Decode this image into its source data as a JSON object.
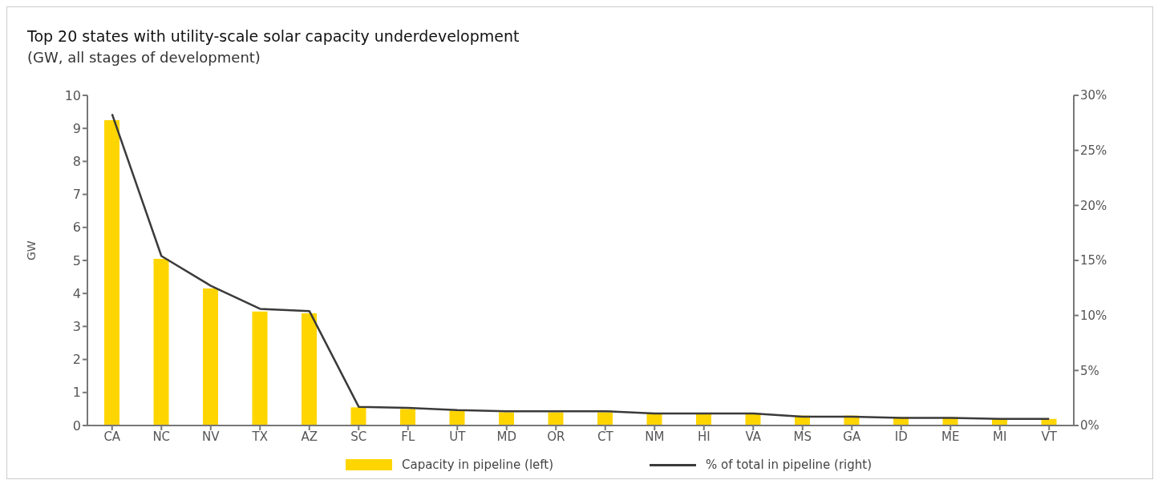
{
  "chart_data": {
    "type": "bar",
    "title": "Top 20 states with utility-scale solar capacity underdevelopment",
    "subtitle": "(GW, all stages of development)",
    "ylabel": "GW",
    "categories": [
      "CA",
      "NC",
      "NV",
      "TX",
      "AZ",
      "SC",
      "FL",
      "UT",
      "MD",
      "OR",
      "CT",
      "NM",
      "HI",
      "VA",
      "MS",
      "GA",
      "ID",
      "ME",
      "MI",
      "VT"
    ],
    "series": [
      {
        "name": "Capacity in pipeline (left)",
        "color": "#ffd500",
        "values": [
          9.25,
          5.05,
          4.15,
          3.45,
          3.4,
          0.55,
          0.5,
          0.45,
          0.4,
          0.4,
          0.4,
          0.35,
          0.35,
          0.35,
          0.3,
          0.3,
          0.25,
          0.25,
          0.2,
          0.2
        ]
      },
      {
        "name": "% of total in pipeline (right)",
        "type": "line",
        "axis": "y2",
        "color": "#3a3a3a",
        "values": [
          28.3,
          15.4,
          12.7,
          10.6,
          10.4,
          1.7,
          1.6,
          1.4,
          1.3,
          1.3,
          1.3,
          1.1,
          1.1,
          1.1,
          0.8,
          0.8,
          0.7,
          0.7,
          0.6,
          0.6
        ]
      }
    ],
    "ylim": [
      0,
      10
    ],
    "yticks": [
      0,
      1,
      2,
      3,
      4,
      5,
      6,
      7,
      8,
      9,
      10
    ],
    "y2lim": [
      0,
      30
    ],
    "y2ticks": [
      {
        "value": 0,
        "label": "0%"
      },
      {
        "value": 5,
        "label": "5%"
      },
      {
        "value": 10,
        "label": "10%"
      },
      {
        "value": 15,
        "label": "15%"
      },
      {
        "value": 20,
        "label": "20%"
      },
      {
        "value": 25,
        "label": "25%"
      },
      {
        "value": 30,
        "label": "30%"
      }
    ],
    "grid": false,
    "legend": "bottom",
    "marker": "none",
    "line_style": "solid"
  }
}
